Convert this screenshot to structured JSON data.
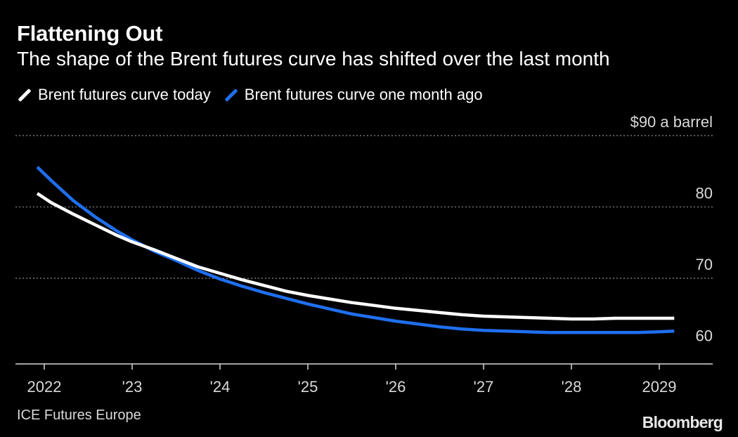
{
  "header": {
    "title": "Flattening Out",
    "subtitle": "The shape of the Brent futures curve has shifted over the last month"
  },
  "footer": {
    "source": "ICE Futures Europe",
    "brand": "Bloomberg"
  },
  "colors": {
    "background": "#000000",
    "today": "#ffffff",
    "month_ago": "#1f6fef",
    "grid": "#8c8c8c"
  },
  "chart_data": {
    "type": "line",
    "title": "Flattening Out",
    "subtitle": "The shape of the Brent futures curve has shifted over the last month",
    "xlabel": "",
    "ylabel": "$ a barrel",
    "xlim": [
      2021.7,
      2029.6
    ],
    "ylim": [
      58,
      90
    ],
    "grid": true,
    "legend": "top-left",
    "x_ticks": [
      {
        "value": 2022,
        "label": "2022"
      },
      {
        "value": 2023,
        "label": "'23"
      },
      {
        "value": 2024,
        "label": "'24"
      },
      {
        "value": 2025,
        "label": "'25"
      },
      {
        "value": 2026,
        "label": "'26"
      },
      {
        "value": 2027,
        "label": "'27"
      },
      {
        "value": 2028,
        "label": "'28"
      },
      {
        "value": 2029,
        "label": "2029"
      }
    ],
    "y_ticks": [
      {
        "value": 90,
        "label": "$90 a barrel"
      },
      {
        "value": 80,
        "label": "80"
      },
      {
        "value": 70,
        "label": "70"
      },
      {
        "value": 60,
        "label": "60"
      }
    ],
    "series": [
      {
        "name": "Brent futures curve today",
        "color": "#ffffff",
        "x": [
          2021.92,
          2022.08,
          2022.33,
          2022.58,
          2022.83,
          2023.0,
          2023.25,
          2023.5,
          2023.75,
          2024.0,
          2024.25,
          2024.5,
          2024.75,
          2025.0,
          2025.25,
          2025.5,
          2025.75,
          2026.0,
          2026.25,
          2026.5,
          2026.75,
          2027.0,
          2027.25,
          2027.5,
          2027.75,
          2028.0,
          2028.25,
          2028.5,
          2028.75,
          2029.0,
          2029.17
        ],
        "values": [
          81.9,
          80.6,
          79.0,
          77.5,
          76.0,
          75.1,
          74.0,
          72.8,
          71.6,
          70.7,
          69.8,
          69.0,
          68.2,
          67.6,
          67.1,
          66.6,
          66.2,
          65.8,
          65.5,
          65.2,
          64.9,
          64.7,
          64.6,
          64.5,
          64.4,
          64.3,
          64.3,
          64.4,
          64.4,
          64.4,
          64.4
        ]
      },
      {
        "name": "Brent futures curve one month ago",
        "color": "#1f6fef",
        "x": [
          2021.92,
          2022.08,
          2022.33,
          2022.58,
          2022.83,
          2023.0,
          2023.25,
          2023.5,
          2023.75,
          2024.0,
          2024.25,
          2024.5,
          2024.75,
          2025.0,
          2025.25,
          2025.5,
          2025.75,
          2026.0,
          2026.25,
          2026.5,
          2026.75,
          2027.0,
          2027.25,
          2027.5,
          2027.75,
          2028.0,
          2028.25,
          2028.5,
          2028.75,
          2029.0,
          2029.17
        ],
        "values": [
          85.6,
          83.7,
          80.9,
          78.6,
          76.6,
          75.4,
          73.8,
          72.5,
          71.1,
          69.9,
          68.9,
          68.0,
          67.2,
          66.4,
          65.7,
          65.0,
          64.5,
          64.0,
          63.6,
          63.2,
          62.9,
          62.7,
          62.6,
          62.5,
          62.4,
          62.4,
          62.4,
          62.4,
          62.4,
          62.5,
          62.6
        ]
      }
    ]
  }
}
